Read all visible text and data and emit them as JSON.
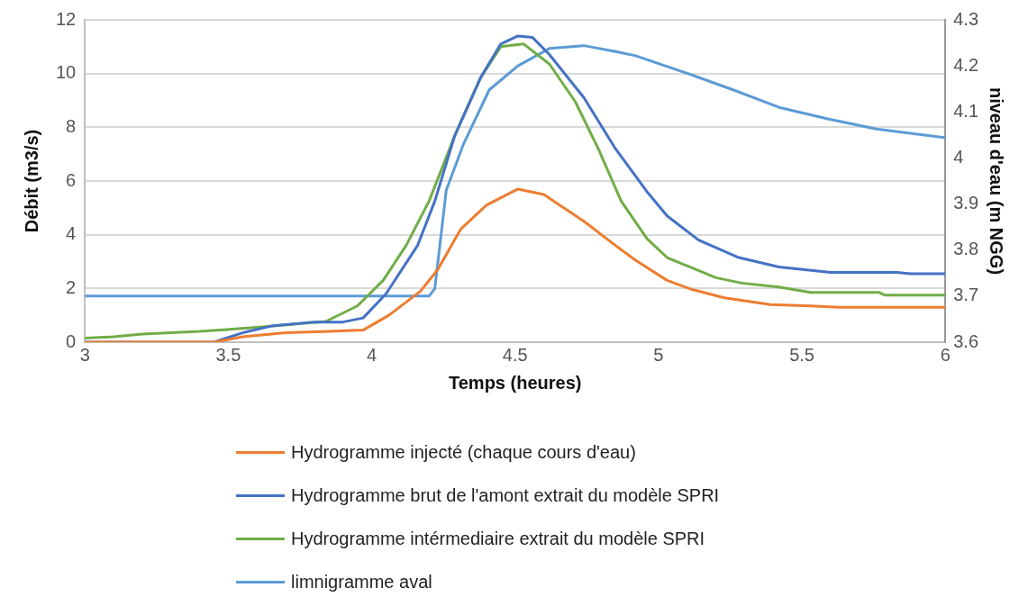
{
  "chart_data": {
    "type": "line",
    "xlabel": "Temps (heures)",
    "ylabel": "Débit (m3/s)",
    "y2label": "niveau d'eau (m NGG)",
    "xlim": [
      3,
      6
    ],
    "xticks": [
      3,
      3.5,
      4,
      4.5,
      5,
      5.5,
      6
    ],
    "ylim": [
      0,
      12
    ],
    "yticks": [
      0,
      2,
      4,
      6,
      8,
      10,
      12
    ],
    "y2lim": [
      3.6,
      4.3
    ],
    "y2ticks": [
      3.6,
      3.7,
      3.8,
      3.9,
      4,
      4.1,
      4.2,
      4.3
    ],
    "grid": "y",
    "legend": "bottom",
    "marker": "none",
    "line_style": "solid",
    "series": [
      {
        "name": "Hydrogramme injecté (chaque cours d'eau)",
        "color": "#ed7d31",
        "x": [
          3,
          3.45,
          3.55,
          3.7,
          3.85,
          3.97,
          4.06,
          4.17,
          4.23,
          4.31,
          4.4,
          4.51,
          4.6,
          4.74,
          4.85,
          4.92,
          5.03,
          5.12,
          5.23,
          5.39,
          5.53,
          5.63,
          6
        ],
        "values": [
          0,
          0,
          0.2,
          0.35,
          0.4,
          0.45,
          1,
          1.9,
          2.7,
          4.2,
          5.1,
          5.7,
          5.5,
          4.5,
          3.6,
          3.05,
          2.3,
          1.95,
          1.65,
          1.4,
          1.35,
          1.3,
          1.3
        ]
      },
      {
        "name": "Hydrogramme brut de l'amont extrait du modèle SPRI",
        "color": "#4472c4",
        "x": [
          3,
          3.45,
          3.55,
          3.65,
          3.8,
          3.9,
          3.97,
          4.05,
          4.16,
          4.22,
          4.29,
          4.38,
          4.45,
          4.51,
          4.56,
          4.62,
          4.74,
          4.85,
          4.96,
          5.03,
          5.14,
          5.28,
          5.42,
          5.6,
          5.83,
          5.88,
          6
        ],
        "values": [
          0,
          0,
          0.35,
          0.6,
          0.75,
          0.75,
          0.9,
          1.8,
          3.6,
          5.25,
          7.7,
          9.85,
          11.1,
          11.4,
          11.35,
          10.7,
          9.1,
          7.2,
          5.6,
          4.7,
          3.8,
          3.15,
          2.8,
          2.6,
          2.6,
          2.55,
          2.55
        ]
      },
      {
        "name": "Hydrogramme intérmediaire extrait du modèle SPRI",
        "color": "#70ad47",
        "x": [
          3,
          3.1,
          3.2,
          3.4,
          3.6,
          3.84,
          3.95,
          4.04,
          4.12,
          4.2,
          4.29,
          4.38,
          4.45,
          4.53,
          4.62,
          4.71,
          4.79,
          4.87,
          4.96,
          5.03,
          5.2,
          5.29,
          5.42,
          5.53,
          5.77,
          5.79,
          6
        ],
        "values": [
          0.15,
          0.2,
          0.3,
          0.4,
          0.55,
          0.77,
          1.35,
          2.3,
          3.6,
          5.25,
          7.7,
          9.85,
          11,
          11.1,
          10.35,
          8.95,
          7.2,
          5.25,
          3.85,
          3.15,
          2.4,
          2.2,
          2.05,
          1.85,
          1.85,
          1.75,
          1.75
        ]
      },
      {
        "name": "limnigramme aval",
        "color": "#5b9bd5",
        "axis": "y2",
        "x": [
          3,
          4.2,
          4.22,
          4.26,
          4.32,
          4.41,
          4.51,
          4.62,
          4.74,
          4.85,
          4.92,
          5.09,
          5.26,
          5.42,
          5.59,
          5.76,
          5.99,
          6
        ],
        "values": [
          3.7,
          3.7,
          3.716,
          3.93,
          4.03,
          4.148,
          4.2,
          4.238,
          4.244,
          4.231,
          4.222,
          4.186,
          4.148,
          4.11,
          4.085,
          4.063,
          4.045,
          4.045
        ]
      }
    ]
  }
}
